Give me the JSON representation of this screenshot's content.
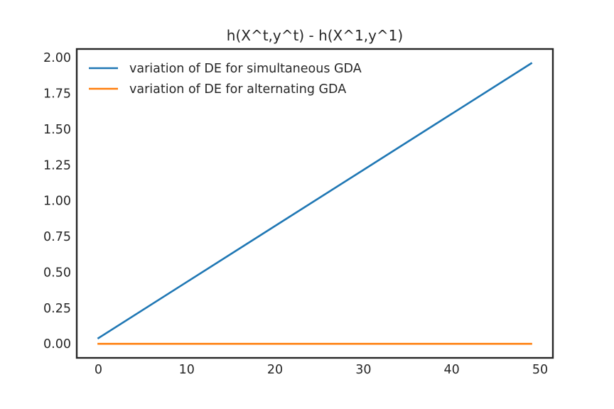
{
  "chart_data": {
    "type": "line",
    "title": "h(X^t,y^t) - h(X^1,y^1)",
    "xlabel": "",
    "ylabel": "",
    "xlim": [
      -2.45,
      51.45
    ],
    "ylim": [
      -0.0981,
      2.0604
    ],
    "x_ticks": [
      0,
      10,
      20,
      30,
      40,
      50
    ],
    "x_tick_labels": [
      "0",
      "10",
      "20",
      "30",
      "40",
      "50"
    ],
    "y_ticks": [
      0.0,
      0.25,
      0.5,
      0.75,
      1.0,
      1.25,
      1.5,
      1.75,
      2.0
    ],
    "y_tick_labels": [
      "0.00",
      "0.25",
      "0.50",
      "0.75",
      "1.00",
      "1.25",
      "1.50",
      "1.75",
      "2.00"
    ],
    "grid": false,
    "legend_position": "upper-left",
    "series": [
      {
        "name": "variation of DE for simultaneous GDA",
        "color": "#1f77b4",
        "x": [
          0,
          49
        ],
        "y": [
          0.04,
          1.96
        ]
      },
      {
        "name": "variation of DE for alternating GDA",
        "color": "#ff7f0e",
        "x": [
          0,
          49
        ],
        "y": [
          0.0,
          0.0
        ]
      }
    ]
  }
}
